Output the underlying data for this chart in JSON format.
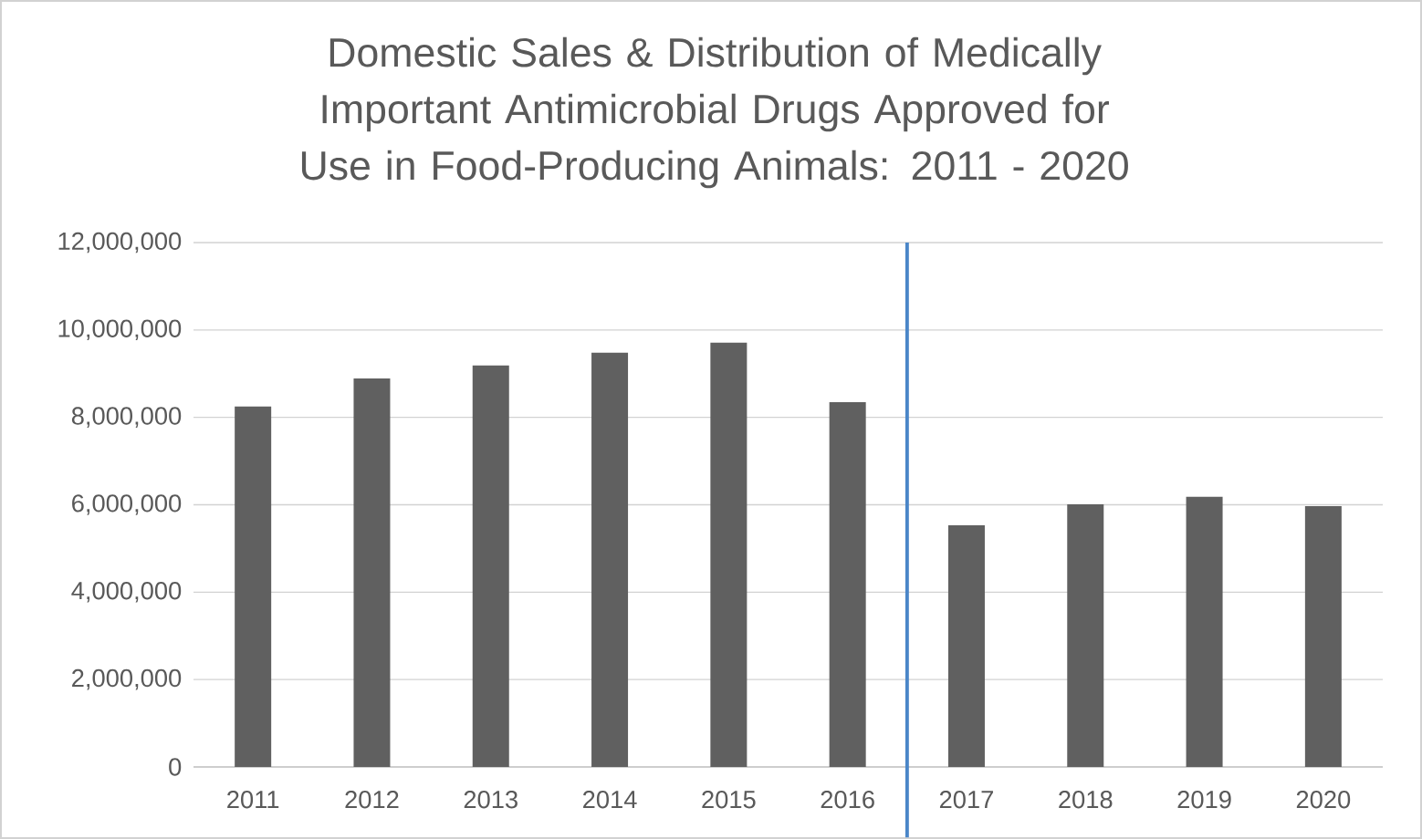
{
  "chart_data": {
    "type": "bar",
    "title": "Domestic Sales & Distribution of Medically Important Antimicrobial Drugs Approved for Use in Food-Producing Animals: 2011 - 2020",
    "categories": [
      "2011",
      "2012",
      "2013",
      "2014",
      "2015",
      "2016",
      "2017",
      "2018",
      "2019",
      "2020"
    ],
    "values": [
      8250000,
      8890000,
      9190000,
      9480000,
      9710000,
      8350000,
      5530000,
      6010000,
      6180000,
      5970000
    ],
    "color": "#606060",
    "ylim": [
      0,
      12000000
    ],
    "yticks": [
      0,
      {
        "value": 2000000,
        "label": "2,000,000"
      },
      {
        "value": 4000000,
        "label": "4,000,000"
      },
      {
        "value": 6000000,
        "label": "6,000,000"
      },
      {
        "value": 8000000,
        "label": "8,000,000"
      },
      {
        "value": 10000000,
        "label": "10,000,000"
      },
      {
        "value": 12000000,
        "label": "12,000,000"
      }
    ],
    "grid": "y",
    "ref_lines": [
      {
        "axis": "x",
        "value": "2017",
        "color": "#4a86c8"
      }
    ]
  }
}
